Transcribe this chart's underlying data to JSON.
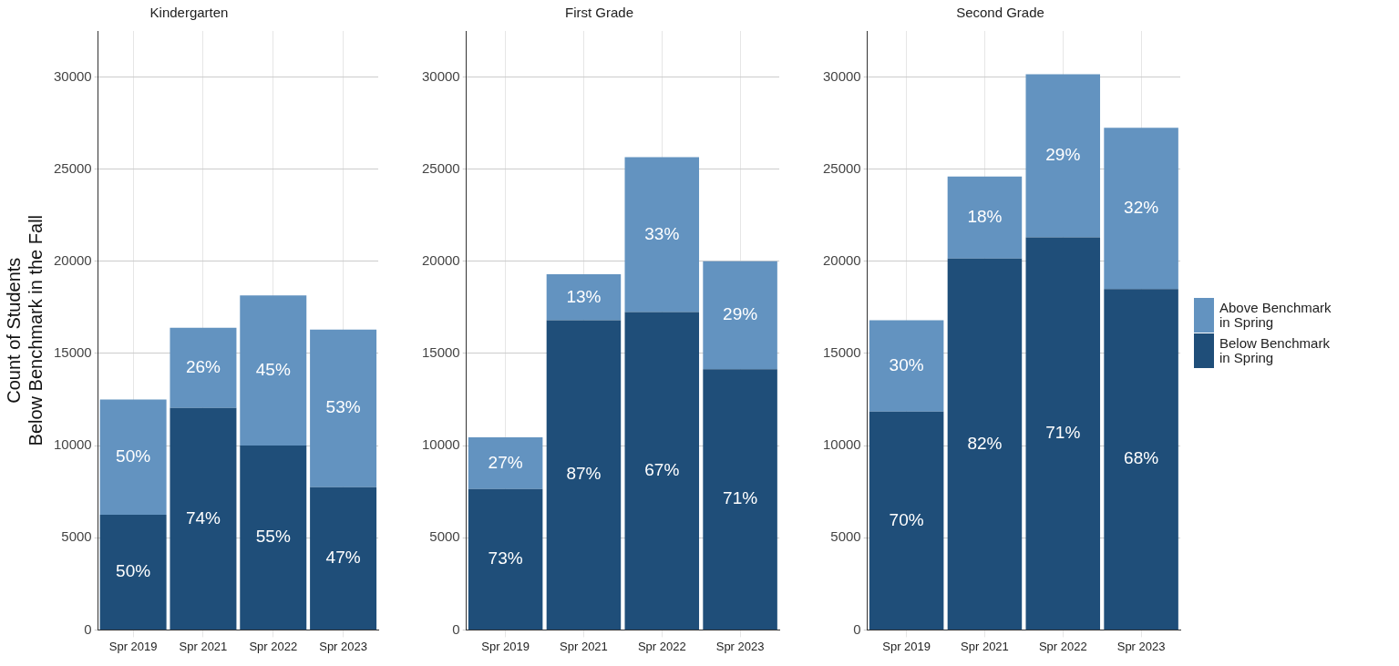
{
  "chart_data": [
    {
      "type": "bar",
      "title": "Kindergarten",
      "ylabel": "Count of Students\nBelow Benchmark in the Fall",
      "categories": [
        "Spr 2019",
        "Spr 2021",
        "Spr 2022",
        "Spr 2023"
      ],
      "stacked": true,
      "ylim": [
        0,
        32500
      ],
      "yticks": [
        0,
        5000,
        10000,
        15000,
        20000,
        25000,
        30000
      ],
      "grid": true,
      "legend": false,
      "series": [
        {
          "color": "#1f4e79",
          "values": [
            6250,
            12050,
            10000,
            7750
          ]
        },
        {
          "color": "#6393c0",
          "values": [
            6250,
            4350,
            8150,
            8550
          ]
        }
      ],
      "annotations": [
        "50%",
        "74%",
        "55%",
        "47%",
        "50%",
        "26%",
        "45%",
        "53%"
      ]
    },
    {
      "type": "bar",
      "title": "First Grade",
      "categories": [
        "Spr 2019",
        "Spr 2021",
        "Spr 2022",
        "Spr 2023"
      ],
      "stacked": true,
      "ylim": [
        0,
        32500
      ],
      "yticks": [
        0,
        5000,
        10000,
        15000,
        20000,
        25000,
        30000
      ],
      "grid": true,
      "legend": false,
      "series": [
        {
          "color": "#1f4e79",
          "values": [
            7650,
            16800,
            17250,
            14150
          ]
        },
        {
          "color": "#6393c0",
          "values": [
            2800,
            2500,
            8400,
            5850
          ]
        }
      ],
      "annotations": [
        "73%",
        "87%",
        "67%",
        "71%",
        "27%",
        "13%",
        "33%",
        "29%"
      ]
    },
    {
      "type": "bar",
      "title": "Second Grade",
      "categories": [
        "Spr 2019",
        "Spr 2021",
        "Spr 2022",
        "Spr 2023"
      ],
      "stacked": true,
      "ylim": [
        0,
        32500
      ],
      "yticks": [
        0,
        5000,
        10000,
        15000,
        20000,
        25000,
        30000
      ],
      "grid": true,
      "legend": "right",
      "series": [
        {
          "name": "Below Benchmark\nin Spring",
          "color": "#1f4e79",
          "values": [
            11850,
            20150,
            21300,
            18500
          ]
        },
        {
          "name": "Above Benchmark\nin Spring",
          "color": "#6393c0",
          "values": [
            4950,
            4450,
            8850,
            8750
          ]
        }
      ],
      "annotations": [
        "70%",
        "82%",
        "71%",
        "68%",
        "30%",
        "18%",
        "29%",
        "32%"
      ]
    }
  ]
}
